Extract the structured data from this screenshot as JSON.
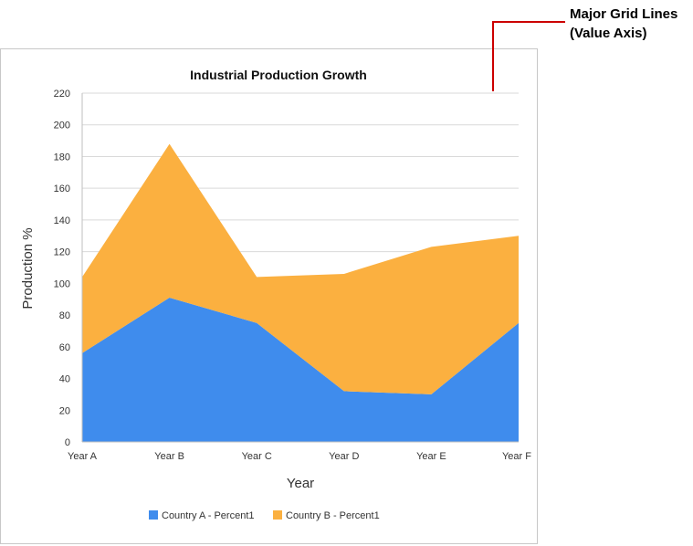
{
  "callout": {
    "text": "Major Grid Lines\n(Value Axis)",
    "color": "#cc0000"
  },
  "chart_data": {
    "type": "area",
    "stacked": true,
    "title": "Industrial Production Growth",
    "xlabel": "Year",
    "ylabel": "Production %",
    "categories": [
      "Year A",
      "Year B",
      "Year C",
      "Year D",
      "Year E",
      "Year F"
    ],
    "ylim": [
      0,
      220
    ],
    "yticks": [
      0,
      20,
      40,
      60,
      80,
      100,
      120,
      140,
      160,
      180,
      200,
      220
    ],
    "grid": true,
    "legend_position": "bottom",
    "series": [
      {
        "name": "Country A - Percent1",
        "color": "#3f8ced",
        "values": [
          56,
          91,
          75,
          32,
          30,
          75
        ]
      },
      {
        "name": "Country B - Percent1",
        "color": "#fbb040",
        "values": [
          48,
          97,
          29,
          74,
          93,
          55
        ]
      }
    ]
  }
}
